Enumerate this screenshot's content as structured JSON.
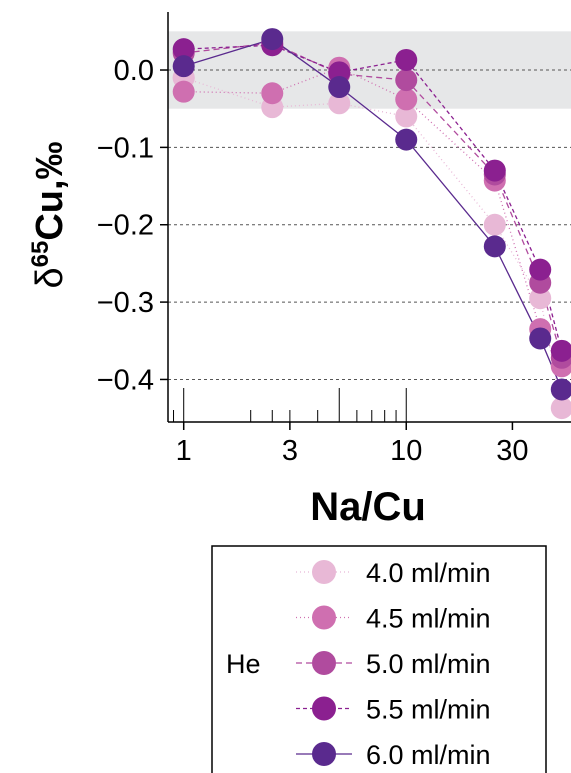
{
  "chart_data": {
    "type": "line",
    "xlabel": "Na/Cu",
    "ylabel": "δ65Cu,‰",
    "ylabel_parts": {
      "delta": "δ",
      "mass": "65",
      "element": "Cu,‰"
    },
    "x_scale": "log",
    "xlim": [
      0.85,
      55
    ],
    "ylim": [
      -0.455,
      0.075
    ],
    "x_ticks": [
      1,
      3,
      10,
      30
    ],
    "x_tick_labels": [
      "1",
      "3",
      "10",
      "30"
    ],
    "x_minor_ticks": [
      0.9,
      1,
      2,
      2.5,
      3,
      4,
      5,
      6,
      7,
      8,
      9,
      10
    ],
    "y_ticks": [
      0.0,
      -0.1,
      -0.2,
      -0.3,
      -0.4
    ],
    "y_tick_labels": [
      "0.0",
      "−0.1",
      "−0.2",
      "−0.3",
      "−0.4"
    ],
    "shaded_band": [
      -0.05,
      0.05
    ],
    "shaded_band_color": "#e6e7e8",
    "grid": "horizontal dashed",
    "legend": {
      "title": "He",
      "placement": "bottom-right, below plot"
    },
    "series": [
      {
        "name": "4.0 ml/min",
        "color": "#e8b8d6",
        "dash": "1,3",
        "x": [
          1,
          1,
          2.5,
          5,
          10,
          25,
          40,
          50
        ],
        "y": [
          -0.01,
          -0.01,
          -0.048,
          -0.043,
          -0.06,
          -0.2,
          -0.295,
          -0.437
        ]
      },
      {
        "name": "4.5 ml/min",
        "color": "#cf6fb0",
        "dash": "1,3",
        "x": [
          1,
          2.5,
          5,
          10,
          25,
          40,
          50
        ],
        "y": [
          -0.028,
          -0.03,
          0.003,
          -0.038,
          -0.143,
          -0.335,
          -0.383
        ]
      },
      {
        "name": "5.0 ml/min",
        "color": "#b04b9e",
        "dash": "6,4",
        "x": [
          1,
          2.5,
          5,
          10,
          25,
          40,
          50
        ],
        "y": [
          0.022,
          0.035,
          -0.005,
          -0.013,
          -0.135,
          -0.275,
          -0.372
        ]
      },
      {
        "name": "5.5 ml/min",
        "color": "#8b2090",
        "dash": "4,3",
        "x": [
          1,
          2.5,
          5,
          10,
          25,
          40,
          50
        ],
        "y": [
          0.027,
          0.032,
          -0.003,
          0.013,
          -0.13,
          -0.258,
          -0.363
        ]
      },
      {
        "name": "6.0 ml/min",
        "color": "#5a2a8e",
        "dash": "",
        "x": [
          1,
          2.5,
          5,
          10,
          25,
          40,
          50
        ],
        "y": [
          0.005,
          0.04,
          -0.022,
          -0.09,
          -0.228,
          -0.347,
          -0.413
        ]
      }
    ]
  }
}
